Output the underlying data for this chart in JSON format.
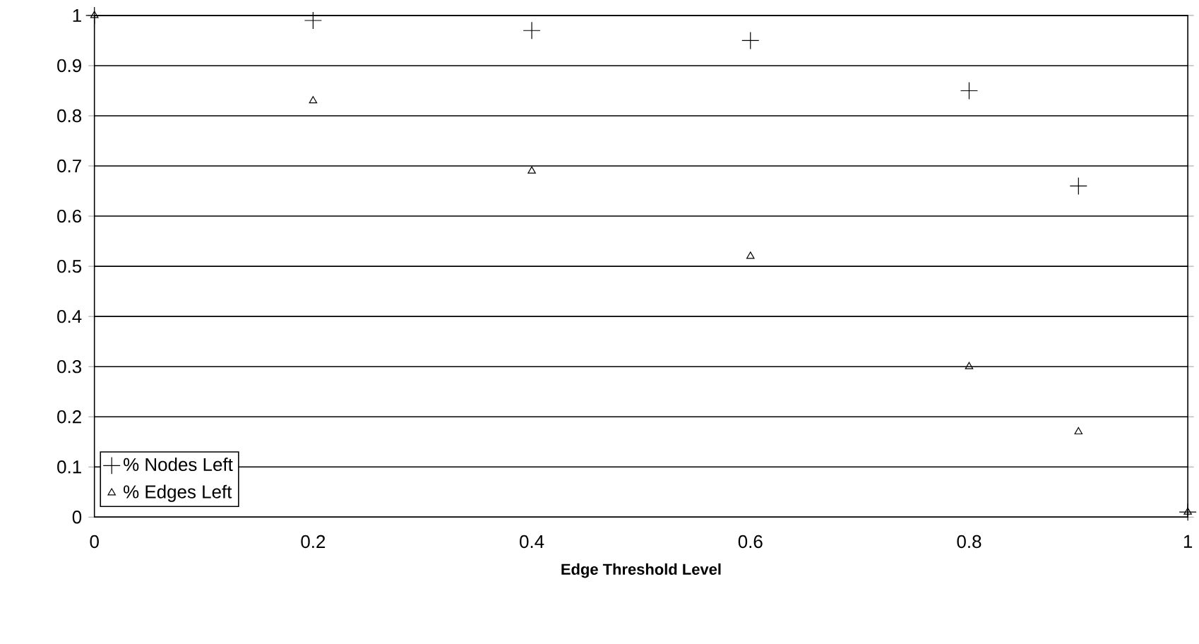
{
  "chart_data": {
    "type": "scatter",
    "xlabel": "Edge Threshold Level",
    "x": [
      0,
      0.2,
      0.4,
      0.6,
      0.8,
      0.9,
      1
    ],
    "series": [
      {
        "name": "% Nodes Left",
        "color": "#000000",
        "marker": "cross",
        "values": [
          1,
          0.99,
          0.97,
          0.95,
          0.85,
          0.66,
          0.01
        ]
      },
      {
        "name": "% Edges Left",
        "color": "#000000",
        "marker": "triangle",
        "values": [
          1,
          0.83,
          0.69,
          0.52,
          0.3,
          0.17,
          0.01
        ]
      }
    ],
    "xlim": [
      0,
      1
    ],
    "ylim": [
      0,
      1
    ],
    "xticks": [
      0,
      0.2,
      0.4,
      0.6,
      0.8,
      1
    ],
    "yticks": [
      0,
      0.1,
      0.2,
      0.3,
      0.4,
      0.5,
      0.6,
      0.7,
      0.8,
      0.9,
      1
    ],
    "grid": "y",
    "legend": "bottom left"
  }
}
